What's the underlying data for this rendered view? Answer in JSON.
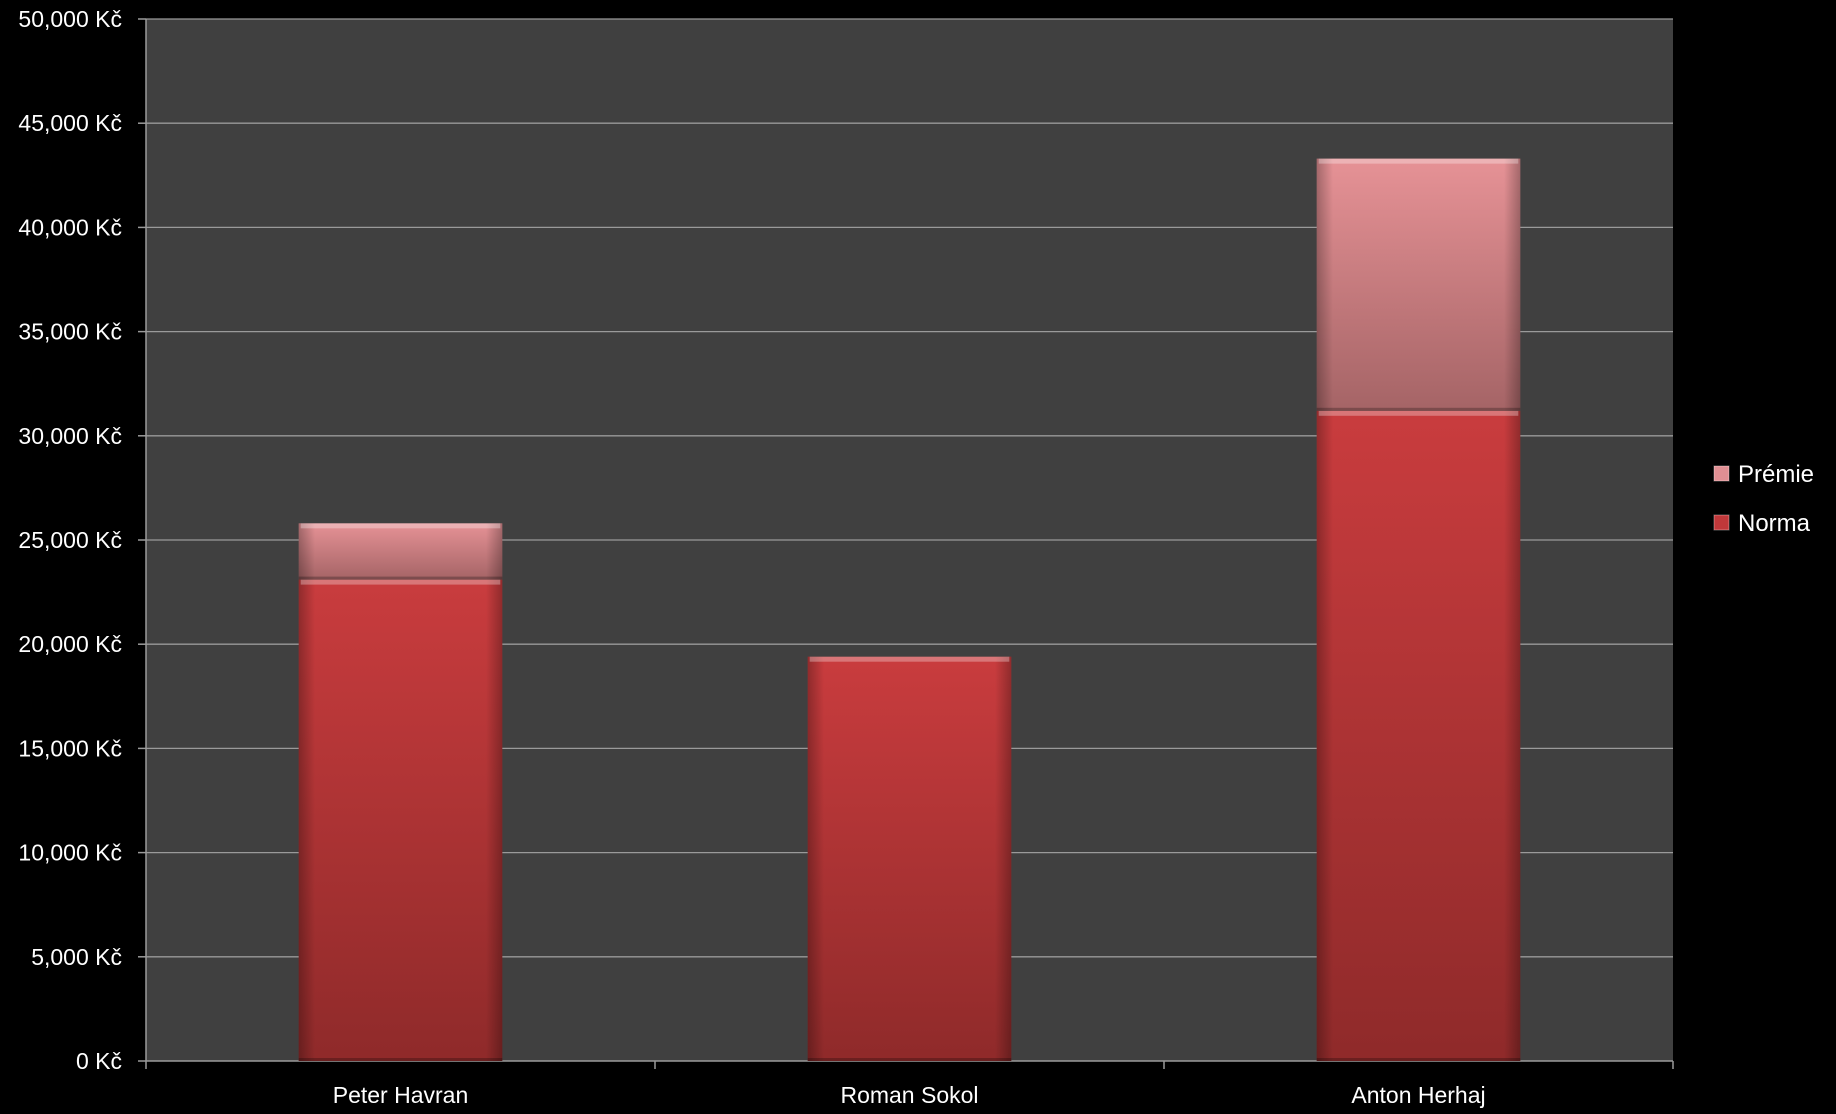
{
  "chart_data": {
    "type": "bar",
    "stacked": true,
    "categories": [
      "Peter Havran",
      "Roman Sokol",
      "Anton Herhaj"
    ],
    "series": [
      {
        "name": "Norma",
        "values": [
          23100,
          19400,
          31200
        ],
        "color": "#c0383a"
      },
      {
        "name": "Prémie",
        "values": [
          2700,
          0,
          12100
        ],
        "color": "#e08f93"
      }
    ],
    "ylim": [
      0,
      50000
    ],
    "ytick_step": 5000,
    "ytick_labels": [
      "0 Kč",
      "5,000 Kč",
      "10,000 Kč",
      "15,000 Kč",
      "20,000 Kč",
      "25,000 Kč",
      "30,000 Kč",
      "35,000 Kč",
      "40,000 Kč",
      "45,000 Kč",
      "50,000 Kč"
    ],
    "title": "",
    "xlabel": "",
    "ylabel": "",
    "grid": true,
    "legend": {
      "placement": "right",
      "entries": [
        "Prémie",
        "Norma"
      ]
    },
    "colors": {
      "page_background": "#000000",
      "plot_background": "#404040",
      "gridline": "#9a9a9a",
      "text": "#ffffff"
    }
  }
}
